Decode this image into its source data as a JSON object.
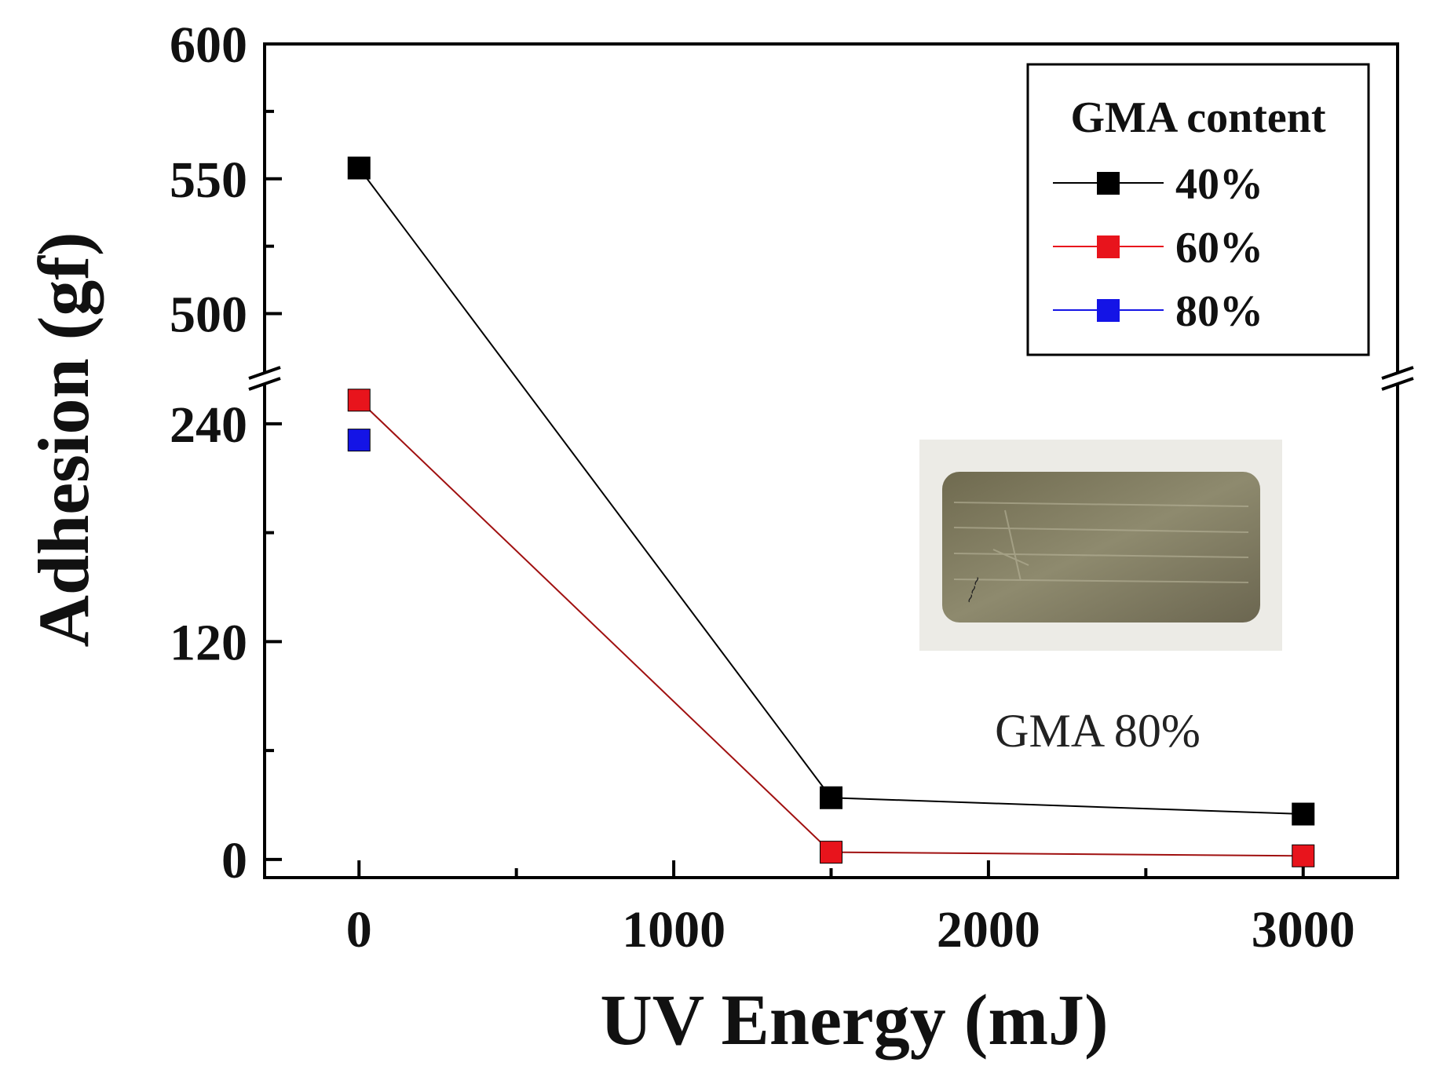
{
  "chart_data": {
    "type": "line",
    "title": "",
    "xlabel": "UV Energy (mJ)",
    "ylabel": "Adhesion (gf)",
    "xlim": [
      -300,
      3300
    ],
    "x_ticks": [
      0,
      1000,
      2000,
      3000
    ],
    "y_axis_broken": true,
    "y_lower_range": [
      -10,
      265
    ],
    "y_upper_range": [
      476,
      600
    ],
    "y_ticks_lower": [
      0,
      120,
      240
    ],
    "y_ticks_upper": [
      500,
      550,
      600
    ],
    "legend": {
      "title": "GMA content",
      "position": "top-right"
    },
    "series": [
      {
        "name": "40%",
        "color": "#000000",
        "x": [
          0,
          1500,
          3000
        ],
        "y": [
          554,
          34,
          25
        ]
      },
      {
        "name": "60%",
        "color": "#e8141c",
        "x": [
          0,
          1500,
          3000
        ],
        "y": [
          253,
          4,
          2
        ]
      },
      {
        "name": "80%",
        "color": "#1414e6",
        "x": [
          0
        ],
        "y": [
          231
        ]
      }
    ],
    "inset": {
      "caption": "GMA 80%",
      "position": "center-right"
    }
  }
}
